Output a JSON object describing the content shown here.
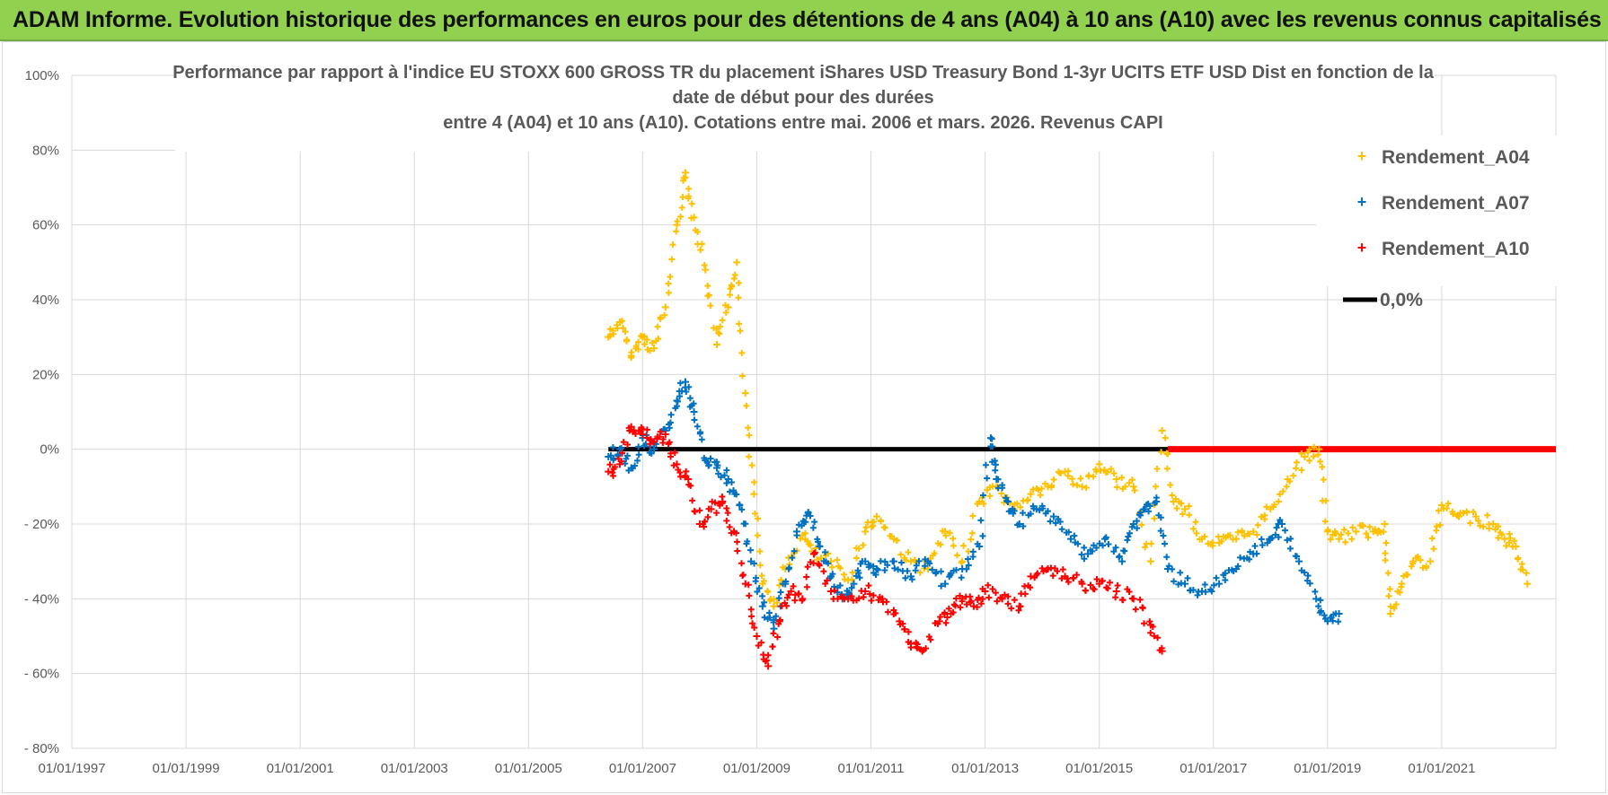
{
  "header": {
    "title": "ADAM Informe. Evolution historique des performances en euros pour des détentions de 4 ans (A04) à 10 ans (A10) avec les revenus connus capitalisés"
  },
  "colors": {
    "A04": "#ffc000",
    "A07": "#0070c0",
    "A10": "#ff0000",
    "zero": "#000000",
    "grid": "#d9d9d9"
  },
  "chart_data": {
    "type": "scatter",
    "title_lines": [
      "Performance par rapport à l'indice EU STOXX 600 GROSS TR  du placement iShares USD Treasury Bond 1-3yr UCITS ETF USD Dist en fonction de la",
      "date de début pour des durées",
      "entre 4 (A04) et 10 ans (A10). Cotations entre mai. 2006 et mars. 2026. Revenus CAPI"
    ],
    "x_domain": [
      1997.0,
      2023.0
    ],
    "ylim": [
      -0.8,
      1.0
    ],
    "x_tick_labels": [
      "01/01/1997",
      "01/01/1999",
      "01/01/2001",
      "01/01/2003",
      "01/01/2005",
      "01/01/2007",
      "01/01/2009",
      "01/01/2011",
      "01/01/2013",
      "01/01/2015",
      "01/01/2017",
      "01/01/2019",
      "01/01/2021"
    ],
    "x_tick_values": [
      1997,
      1999,
      2001,
      2003,
      2005,
      2007,
      2009,
      2011,
      2013,
      2015,
      2017,
      2019,
      2021
    ],
    "y_tick_labels": [
      "100%",
      "80%",
      "60%",
      "40%",
      "20%",
      "0%",
      "- 20%",
      "- 40%",
      "- 60%",
      "- 80%"
    ],
    "y_tick_values": [
      1.0,
      0.8,
      0.6,
      0.4,
      0.2,
      0.0,
      -0.2,
      -0.4,
      -0.6,
      -0.8
    ],
    "legend": [
      {
        "key": "A04",
        "label": "Rendement_A04",
        "marker": "+"
      },
      {
        "key": "A07",
        "label": "Rendement_A07",
        "marker": "+"
      },
      {
        "key": "A10",
        "label": "Rendement_A10",
        "marker": "+"
      },
      {
        "key": "zero",
        "label": "0,0%",
        "marker": "line"
      }
    ],
    "series": [
      {
        "name": "Rendement_A04",
        "key": "A04",
        "x": [
          2006.4,
          2006.6,
          2006.8,
          2007.0,
          2007.2,
          2007.4,
          2007.6,
          2007.75,
          2007.9,
          2008.1,
          2008.3,
          2008.5,
          2008.65,
          2008.8,
          2008.95,
          2009.1,
          2009.3,
          2009.5,
          2009.8,
          2010.0,
          2010.3,
          2010.6,
          2010.9,
          2011.1,
          2011.4,
          2011.7,
          2012.0,
          2012.3,
          2012.6,
          2012.9,
          2013.2,
          2013.5,
          2013.8,
          2014.1,
          2014.4,
          2014.7,
          2015.0,
          2015.3,
          2015.6,
          2015.9,
          2016.1,
          2016.3,
          2016.5,
          2016.8,
          2017.1,
          2017.4,
          2017.7,
          2018.0,
          2018.3,
          2018.6,
          2018.85,
          2019.0,
          2019.2,
          2019.5,
          2019.8,
          2020.0,
          2020.1,
          2020.3,
          2020.5,
          2020.8,
          2021.0,
          2021.3,
          2021.6,
          2021.9,
          2022.1,
          2022.3,
          2022.5
        ],
        "y": [
          0.3,
          0.34,
          0.25,
          0.3,
          0.27,
          0.38,
          0.6,
          0.74,
          0.62,
          0.48,
          0.28,
          0.38,
          0.5,
          0.15,
          -0.12,
          -0.36,
          -0.42,
          -0.32,
          -0.23,
          -0.28,
          -0.3,
          -0.35,
          -0.22,
          -0.18,
          -0.24,
          -0.3,
          -0.32,
          -0.22,
          -0.3,
          -0.14,
          -0.1,
          -0.16,
          -0.12,
          -0.1,
          -0.06,
          -0.1,
          -0.04,
          -0.08,
          -0.1,
          -0.3,
          0.05,
          -0.14,
          -0.16,
          -0.24,
          -0.25,
          -0.24,
          -0.22,
          -0.16,
          -0.08,
          -0.02,
          0.0,
          -0.22,
          -0.24,
          -0.22,
          -0.22,
          -0.2,
          -0.44,
          -0.36,
          -0.3,
          -0.3,
          -0.15,
          -0.18,
          -0.18,
          -0.2,
          -0.24,
          -0.26,
          -0.36
        ]
      },
      {
        "name": "Rendement_A07",
        "key": "A07",
        "x": [
          2006.4,
          2006.6,
          2006.8,
          2007.0,
          2007.2,
          2007.4,
          2007.6,
          2007.75,
          2007.9,
          2008.1,
          2008.3,
          2008.5,
          2008.7,
          2008.9,
          2009.1,
          2009.3,
          2009.5,
          2009.7,
          2009.9,
          2010.1,
          2010.3,
          2010.5,
          2010.7,
          2010.9,
          2011.1,
          2011.4,
          2011.7,
          2012.0,
          2012.3,
          2012.6,
          2012.9,
          2013.1,
          2013.2,
          2013.4,
          2013.6,
          2013.9,
          2014.2,
          2014.5,
          2014.8,
          2015.1,
          2015.4,
          2015.6,
          2015.8,
          2016.0,
          2016.2,
          2016.5,
          2016.8,
          2017.1,
          2017.4,
          2017.7,
          2018.0,
          2018.2,
          2018.5,
          2018.8,
          2019.0,
          2019.2
        ],
        "y": [
          -0.02,
          0.0,
          -0.05,
          0.03,
          0.0,
          0.05,
          0.13,
          0.18,
          0.1,
          -0.03,
          -0.05,
          -0.08,
          -0.15,
          -0.3,
          -0.42,
          -0.48,
          -0.36,
          -0.22,
          -0.17,
          -0.26,
          -0.34,
          -0.4,
          -0.36,
          -0.3,
          -0.32,
          -0.3,
          -0.34,
          -0.3,
          -0.36,
          -0.32,
          -0.26,
          0.03,
          -0.08,
          -0.14,
          -0.2,
          -0.16,
          -0.18,
          -0.24,
          -0.28,
          -0.24,
          -0.3,
          -0.2,
          -0.16,
          -0.14,
          -0.32,
          -0.36,
          -0.38,
          -0.36,
          -0.32,
          -0.28,
          -0.24,
          -0.2,
          -0.3,
          -0.4,
          -0.46,
          -0.44
        ]
      },
      {
        "name": "Rendement_A10",
        "key": "A10",
        "x": [
          2006.4,
          2006.6,
          2006.8,
          2007.0,
          2007.2,
          2007.4,
          2007.6,
          2007.8,
          2008.0,
          2008.2,
          2008.4,
          2008.6,
          2008.8,
          2009.0,
          2009.2,
          2009.4,
          2009.6,
          2009.8,
          2010.0,
          2010.3,
          2010.6,
          2010.9,
          2011.2,
          2011.5,
          2011.7,
          2011.9,
          2012.2,
          2012.4,
          2012.6,
          2012.8,
          2013.0,
          2013.3,
          2013.6,
          2013.8,
          2014.1,
          2014.4,
          2014.7,
          2015.0,
          2015.3,
          2015.6,
          2015.9,
          2016.1
        ],
        "y": [
          -0.06,
          -0.04,
          0.06,
          0.04,
          0.02,
          0.04,
          -0.04,
          -0.08,
          -0.2,
          -0.16,
          -0.14,
          -0.22,
          -0.36,
          -0.5,
          -0.58,
          -0.46,
          -0.38,
          -0.4,
          -0.28,
          -0.38,
          -0.4,
          -0.38,
          -0.4,
          -0.46,
          -0.52,
          -0.54,
          -0.46,
          -0.44,
          -0.4,
          -0.42,
          -0.38,
          -0.4,
          -0.42,
          -0.34,
          -0.32,
          -0.34,
          -0.36,
          -0.36,
          -0.38,
          -0.4,
          -0.47,
          -0.54
        ]
      }
    ],
    "zero_line": {
      "black_x_range": [
        2006.4,
        2016.2
      ],
      "red_x_range": [
        2016.2,
        2023.0
      ],
      "y": 0.0
    }
  }
}
